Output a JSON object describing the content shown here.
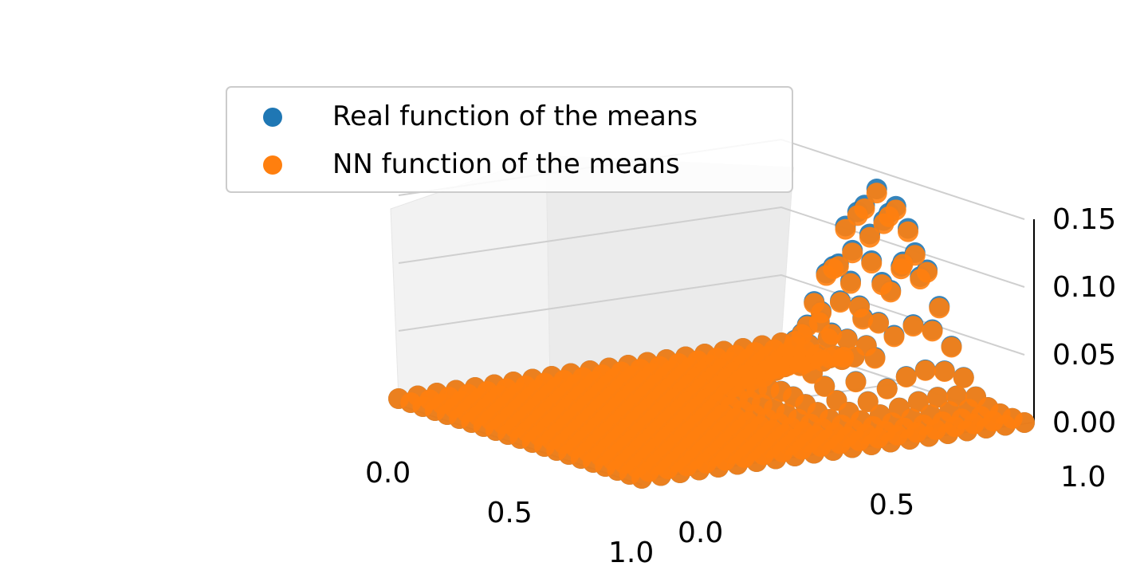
{
  "chart_data": {
    "type": "scatter",
    "projection": "3d",
    "title": "",
    "xlabel": "",
    "ylabel": "",
    "zlabel": "",
    "xlim": [
      0.0,
      1.0
    ],
    "ylim": [
      0.0,
      1.0
    ],
    "zlim": [
      0.0,
      0.15
    ],
    "grid": true,
    "legend_position": "top-left",
    "x_ticks": [
      "0.0",
      "0.5",
      "1.0"
    ],
    "y_ticks": [
      "0.0",
      "0.5",
      "1.0"
    ],
    "z_ticks": [
      "0.00",
      "0.05",
      "0.10",
      "0.15"
    ],
    "surface": {
      "grid_x": [
        0.0,
        0.05,
        0.1,
        0.15,
        0.2,
        0.25,
        0.3,
        0.35,
        0.4,
        0.45,
        0.5,
        0.55,
        0.6,
        0.65,
        0.7,
        0.75,
        0.8,
        0.85,
        0.9,
        0.95,
        1.0
      ],
      "grid_y": [
        0.0,
        0.05,
        0.1,
        0.15,
        0.2,
        0.25,
        0.3,
        0.35,
        0.4,
        0.45,
        0.5,
        0.55,
        0.6,
        0.65,
        0.7,
        0.75,
        0.8,
        0.85,
        0.9,
        0.95,
        1.0
      ],
      "peak": 0.15,
      "peak_location": [
        0.55,
        0.9
      ],
      "baseline": 0.0
    },
    "series": [
      {
        "name": "Real function of the means",
        "color": "#1f77b4",
        "marker": "circle"
      },
      {
        "name": "NN function of the means",
        "color": "#ff7f0e",
        "marker": "circle"
      }
    ]
  }
}
